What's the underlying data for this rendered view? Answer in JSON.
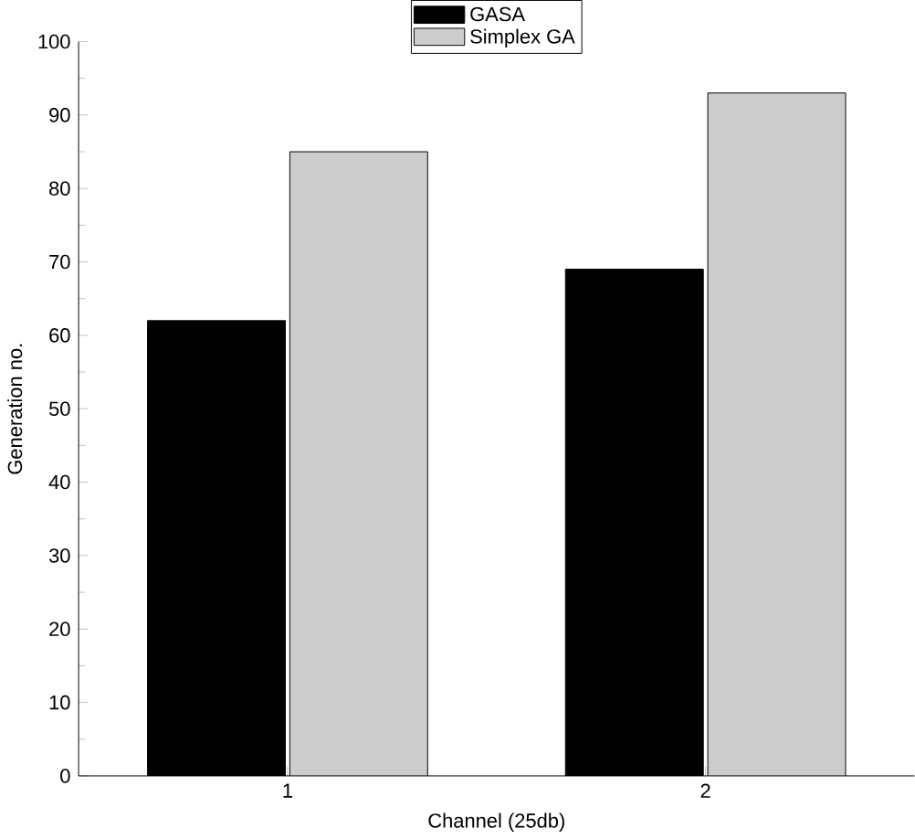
{
  "chart_data": {
    "type": "bar",
    "xlabel": "Channel (25db)",
    "ylabel": "Generation no.",
    "categories": [
      "1",
      "2"
    ],
    "series": [
      {
        "name": "GASA",
        "color": "#000000",
        "values": [
          62,
          69
        ]
      },
      {
        "name": "Simplex GA",
        "color": "#cccccc",
        "values": [
          85,
          93
        ]
      }
    ],
    "ylim": [
      0,
      100
    ],
    "yticks": [
      0,
      10,
      20,
      30,
      40,
      50,
      60,
      70,
      80,
      90,
      100
    ],
    "legend": "top",
    "grid": false
  }
}
